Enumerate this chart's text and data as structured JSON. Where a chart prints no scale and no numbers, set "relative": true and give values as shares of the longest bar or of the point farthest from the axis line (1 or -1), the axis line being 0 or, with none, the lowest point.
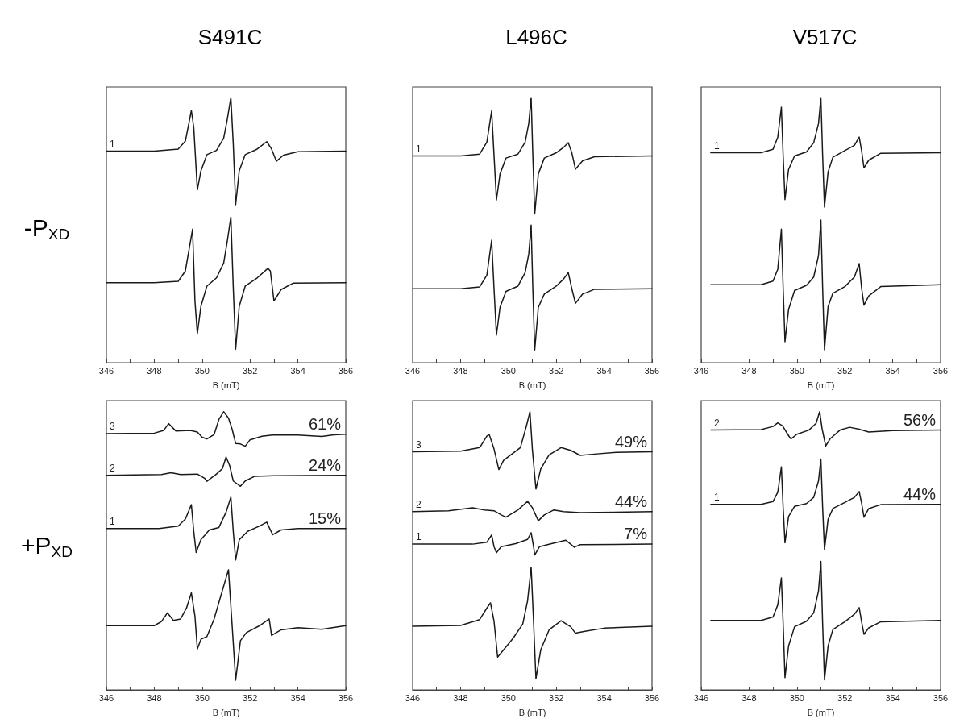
{
  "chart_data": [
    {
      "type": "line",
      "title": "S491C",
      "ylabel": "-P$_{XD}$",
      "xlabel": "B (mT)",
      "relative": true,
      "marker": "none",
      "xlim": [
        346,
        356
      ],
      "xticks": [
        346,
        {
          "value": 347,
          "label": null
        },
        348,
        {
          "value": 349,
          "label": null
        },
        350,
        {
          "value": 351,
          "label": null
        },
        352,
        {
          "value": 353,
          "label": null
        },
        354,
        {
          "value": 355,
          "label": null
        },
        356
      ],
      "series": [
        {
          "name": "1",
          "color": "#1a1a1a",
          "x": [
            346,
            348,
            349,
            349.3,
            349.55,
            349.65,
            349.8,
            349.95,
            350.2,
            350.6,
            350.9,
            351.05,
            351.2,
            351.3,
            351.4,
            351.55,
            351.8,
            352.3,
            352.7,
            352.9,
            353.1,
            353.4,
            354,
            356
          ],
          "values": [
            0.798,
            0.798,
            0.806,
            0.836,
            0.951,
            0.888,
            0.652,
            0.724,
            0.785,
            0.801,
            0.847,
            0.918,
            1.0,
            0.826,
            0.596,
            0.724,
            0.785,
            0.806,
            0.834,
            0.806,
            0.76,
            0.783,
            0.796,
            0.798
          ]
        },
        {
          "color": "#1a1a1a",
          "x": [
            346,
            348,
            349,
            349.3,
            349.6,
            349.7,
            349.8,
            349.95,
            350.2,
            350.6,
            350.9,
            351.05,
            351.2,
            351.3,
            351.4,
            351.55,
            351.8,
            352.3,
            352.75,
            352.85,
            353,
            353.3,
            353.8,
            356
          ],
          "values": [
            0.302,
            0.302,
            0.307,
            0.346,
            0.504,
            0.233,
            0.11,
            0.213,
            0.289,
            0.32,
            0.376,
            0.458,
            0.55,
            0.284,
            0.051,
            0.213,
            0.289,
            0.32,
            0.356,
            0.346,
            0.233,
            0.276,
            0.3,
            0.302
          ]
        }
      ]
    },
    {
      "type": "line",
      "title": "L496C",
      "xlabel": "B (mT)",
      "relative": true,
      "marker": "none",
      "xlim": [
        346,
        356
      ],
      "xticks": [
        346,
        {
          "value": 347,
          "label": null
        },
        348,
        {
          "value": 349,
          "label": null
        },
        350,
        {
          "value": 351,
          "label": null
        },
        352,
        {
          "value": 353,
          "label": null
        },
        354,
        {
          "value": 355,
          "label": null
        },
        356
      ],
      "series": [
        {
          "name": "1",
          "color": "#1a1a1a",
          "x": [
            346,
            348,
            348.8,
            349.1,
            349.3,
            349.4,
            349.5,
            349.65,
            349.9,
            350.4,
            350.7,
            350.85,
            350.95,
            351.02,
            351.1,
            351.25,
            351.5,
            352,
            352.3,
            352.5,
            352.65,
            352.8,
            353.1,
            353.6,
            356
          ],
          "values": [
            0.78,
            0.78,
            0.787,
            0.832,
            0.95,
            0.782,
            0.614,
            0.712,
            0.772,
            0.787,
            0.832,
            0.903,
            1.0,
            0.782,
            0.561,
            0.712,
            0.772,
            0.792,
            0.812,
            0.83,
            0.792,
            0.73,
            0.762,
            0.777,
            0.78
          ]
        },
        {
          "color": "#1a1a1a",
          "x": [
            346,
            348,
            348.8,
            349.1,
            349.3,
            349.4,
            349.5,
            349.65,
            349.9,
            350.4,
            350.7,
            350.85,
            350.95,
            351.02,
            351.1,
            351.25,
            351.5,
            352,
            352.3,
            352.5,
            352.65,
            352.8,
            353.1,
            353.6,
            356
          ],
          "values": [
            0.279,
            0.279,
            0.286,
            0.33,
            0.462,
            0.279,
            0.104,
            0.209,
            0.269,
            0.289,
            0.34,
            0.41,
            0.519,
            0.279,
            0.048,
            0.209,
            0.259,
            0.289,
            0.315,
            0.34,
            0.279,
            0.224,
            0.259,
            0.277,
            0.279
          ]
        }
      ]
    },
    {
      "type": "line",
      "title": "V517C",
      "xlabel": "B (mT)",
      "relative": true,
      "marker": "none",
      "xlim": [
        346,
        356
      ],
      "xticks": [
        346,
        {
          "value": 347,
          "label": null
        },
        348,
        {
          "value": 349,
          "label": null
        },
        350,
        {
          "value": 351,
          "label": null
        },
        352,
        {
          "value": 353,
          "label": null
        },
        354,
        {
          "value": 355,
          "label": null
        },
        356
      ],
      "series": [
        {
          "name": "1",
          "color": "#1a1a1a",
          "x": [
            346.4,
            348.5,
            349,
            349.2,
            349.35,
            349.42,
            349.5,
            349.65,
            349.9,
            350.4,
            350.7,
            350.9,
            351,
            351.07,
            351.15,
            351.3,
            351.5,
            352,
            352.4,
            352.6,
            352.7,
            352.8,
            353,
            353.5,
            356
          ],
          "values": [
            0.792,
            0.792,
            0.805,
            0.851,
            0.964,
            0.79,
            0.615,
            0.729,
            0.78,
            0.795,
            0.83,
            0.902,
            1.0,
            0.79,
            0.587,
            0.719,
            0.775,
            0.8,
            0.82,
            0.851,
            0.8,
            0.735,
            0.764,
            0.79,
            0.792
          ]
        },
        {
          "color": "#1a1a1a",
          "x": [
            346.4,
            348.5,
            349,
            349.2,
            349.35,
            349.42,
            349.5,
            349.65,
            349.9,
            350.4,
            350.7,
            350.9,
            351,
            351.07,
            351.15,
            351.3,
            351.5,
            352,
            352.4,
            352.6,
            352.7,
            352.8,
            353,
            353.5,
            356
          ],
          "values": [
            0.294,
            0.294,
            0.308,
            0.353,
            0.504,
            0.292,
            0.079,
            0.201,
            0.272,
            0.292,
            0.323,
            0.404,
            0.538,
            0.292,
            0.049,
            0.211,
            0.262,
            0.287,
            0.323,
            0.374,
            0.282,
            0.217,
            0.252,
            0.287,
            0.294
          ]
        }
      ]
    },
    {
      "type": "line",
      "ylabel": "+P$_{XD}$",
      "xlabel": "B (mT)",
      "relative": true,
      "marker": "none",
      "xlim": [
        346,
        356
      ],
      "xticks": [
        346,
        {
          "value": 347,
          "label": null
        },
        348,
        {
          "value": 349,
          "label": null
        },
        350,
        {
          "value": 351,
          "label": null
        },
        352,
        {
          "value": 353,
          "label": null
        },
        354,
        {
          "value": 355,
          "label": null
        },
        356
      ],
      "annotations": [
        "61%",
        "24%",
        "15%"
      ],
      "series": [
        {
          "name": "3",
          "color": "#1a1a1a",
          "x": [
            346,
            348,
            348.4,
            348.6,
            348.9,
            349.5,
            349.8,
            350,
            350.2,
            350.5,
            350.7,
            350.9,
            351.1,
            351.25,
            351.4,
            351.6,
            351.8,
            352,
            352.5,
            353,
            354,
            355,
            355.5,
            356
          ],
          "values": [
            0.921,
            0.923,
            0.933,
            0.957,
            0.931,
            0.933,
            0.927,
            0.908,
            0.902,
            0.918,
            0.972,
            1.0,
            0.977,
            0.938,
            0.886,
            0.884,
            0.876,
            0.899,
            0.912,
            0.917,
            0.916,
            0.911,
            0.917,
            0.919
          ]
        },
        {
          "name": "2",
          "color": "#1a1a1a",
          "x": [
            346,
            348.3,
            348.7,
            349.1,
            349.8,
            350.1,
            350.2,
            350.6,
            350.85,
            351,
            351.15,
            351.3,
            351.6,
            351.8,
            352.2,
            353,
            356
          ],
          "values": [
            0.771,
            0.774,
            0.781,
            0.774,
            0.776,
            0.761,
            0.75,
            0.776,
            0.796,
            0.837,
            0.806,
            0.751,
            0.732,
            0.751,
            0.768,
            0.77,
            0.771
          ]
        },
        {
          "name": "1",
          "color": "#1a1a1a",
          "x": [
            346,
            348.2,
            349,
            349.3,
            349.55,
            349.65,
            349.75,
            349.95,
            350.3,
            350.7,
            351,
            351.2,
            351.3,
            351.4,
            351.55,
            351.9,
            352.4,
            352.7,
            352.8,
            352.95,
            353.3,
            354,
            356
          ],
          "values": [
            0.58,
            0.58,
            0.589,
            0.614,
            0.666,
            0.57,
            0.494,
            0.54,
            0.575,
            0.584,
            0.639,
            0.693,
            0.57,
            0.467,
            0.54,
            0.57,
            0.589,
            0.603,
            0.584,
            0.558,
            0.575,
            0.58,
            0.58
          ]
        },
        {
          "color": "#1a1a1a",
          "x": [
            346,
            348,
            348.3,
            348.55,
            348.8,
            349.1,
            349.35,
            349.55,
            349.7,
            349.8,
            349.95,
            350.2,
            350.5,
            350.8,
            351.1,
            351.25,
            351.4,
            351.6,
            351.85,
            352.4,
            352.8,
            352.9,
            353.3,
            354,
            355,
            356
          ],
          "values": [
            0.231,
            0.231,
            0.246,
            0.277,
            0.25,
            0.255,
            0.295,
            0.349,
            0.265,
            0.147,
            0.182,
            0.192,
            0.255,
            0.344,
            0.432,
            0.236,
            0.035,
            0.177,
            0.206,
            0.231,
            0.255,
            0.196,
            0.216,
            0.224,
            0.218,
            0.231
          ]
        }
      ]
    },
    {
      "type": "line",
      "xlabel": "B (mT)",
      "relative": true,
      "marker": "none",
      "xlim": [
        346,
        356
      ],
      "xticks": [
        346,
        {
          "value": 347,
          "label": null
        },
        348,
        {
          "value": 349,
          "label": null
        },
        350,
        {
          "value": 351,
          "label": null
        },
        352,
        {
          "value": 353,
          "label": null
        },
        354,
        {
          "value": 355,
          "label": null
        },
        356
      ],
      "annotations": [
        "49%",
        "44%",
        "7%"
      ],
      "series": [
        {
          "name": "3",
          "color": "#1a1a1a",
          "x": [
            346,
            348,
            348.8,
            349.1,
            349.2,
            349.4,
            349.6,
            349.8,
            350.1,
            350.5,
            350.75,
            350.9,
            351,
            351.15,
            351.35,
            351.7,
            352.2,
            352.6,
            353,
            353.5,
            354.5,
            356
          ],
          "values": [
            0.856,
            0.858,
            0.871,
            0.912,
            0.918,
            0.866,
            0.792,
            0.825,
            0.845,
            0.871,
            0.948,
            1.0,
            0.866,
            0.722,
            0.794,
            0.845,
            0.871,
            0.861,
            0.843,
            0.847,
            0.854,
            0.856
          ]
        },
        {
          "name": "2",
          "color": "#1a1a1a",
          "x": [
            346,
            347.5,
            348.5,
            349,
            349.4,
            349.7,
            349.9,
            350.4,
            350.8,
            351,
            351.25,
            351.5,
            351.9,
            352.3,
            353,
            356
          ],
          "values": [
            0.641,
            0.644,
            0.655,
            0.647,
            0.644,
            0.629,
            0.621,
            0.647,
            0.678,
            0.655,
            0.608,
            0.629,
            0.647,
            0.641,
            0.637,
            0.641
          ]
        },
        {
          "name": "1",
          "color": "#1a1a1a",
          "x": [
            346,
            348.5,
            349.1,
            349.3,
            349.4,
            349.5,
            349.7,
            350.3,
            350.8,
            350.95,
            351.05,
            351.1,
            351.3,
            351.8,
            352.4,
            352.6,
            352.75,
            353,
            356
          ],
          "values": [
            0.524,
            0.524,
            0.531,
            0.557,
            0.515,
            0.493,
            0.515,
            0.526,
            0.541,
            0.565,
            0.515,
            0.485,
            0.515,
            0.526,
            0.538,
            0.524,
            0.513,
            0.522,
            0.524
          ]
        },
        {
          "color": "#1a1a1a",
          "x": [
            346,
            348,
            348.8,
            349.1,
            349.25,
            349.4,
            349.55,
            349.8,
            350.2,
            350.6,
            350.8,
            350.95,
            351.05,
            351.15,
            351.35,
            351.7,
            352.2,
            352.6,
            352.8,
            353.2,
            354,
            356
          ],
          "values": [
            0.229,
            0.232,
            0.253,
            0.294,
            0.313,
            0.247,
            0.118,
            0.144,
            0.186,
            0.237,
            0.32,
            0.441,
            0.247,
            0.04,
            0.144,
            0.216,
            0.249,
            0.227,
            0.204,
            0.211,
            0.222,
            0.229
          ]
        }
      ]
    },
    {
      "type": "line",
      "xlabel": "B (mT)",
      "relative": true,
      "marker": "none",
      "xlim": [
        346,
        356
      ],
      "xticks": [
        346,
        {
          "value": 347,
          "label": null
        },
        348,
        {
          "value": 349,
          "label": null
        },
        350,
        {
          "value": 351,
          "label": null
        },
        352,
        {
          "value": 353,
          "label": null
        },
        354,
        {
          "value": 355,
          "label": null
        },
        356
      ],
      "annotations": [
        "56%",
        "44%"
      ],
      "series": [
        {
          "name": "2",
          "color": "#1a1a1a",
          "x": [
            346.4,
            348.5,
            349,
            349.2,
            349.4,
            349.65,
            349.75,
            350,
            350.5,
            350.8,
            350.95,
            351.05,
            351.2,
            351.4,
            351.8,
            352.2,
            352.6,
            353,
            354,
            356
          ],
          "values": [
            0.934,
            0.936,
            0.947,
            0.96,
            0.949,
            0.914,
            0.902,
            0.919,
            0.934,
            0.958,
            1.0,
            0.939,
            0.877,
            0.904,
            0.934,
            0.944,
            0.937,
            0.927,
            0.932,
            0.934
          ]
        },
        {
          "name": "1",
          "color": "#1a1a1a",
          "x": [
            346.4,
            348.5,
            349,
            349.2,
            349.35,
            349.42,
            349.5,
            349.65,
            349.9,
            350.4,
            350.7,
            350.9,
            351,
            351.07,
            351.15,
            351.3,
            351.5,
            352,
            352.4,
            352.6,
            352.7,
            352.8,
            353,
            353.5,
            356
          ],
          "values": [
            0.667,
            0.667,
            0.677,
            0.711,
            0.802,
            0.662,
            0.529,
            0.623,
            0.66,
            0.67,
            0.692,
            0.751,
            0.83,
            0.662,
            0.504,
            0.613,
            0.652,
            0.674,
            0.692,
            0.713,
            0.672,
            0.621,
            0.652,
            0.666,
            0.667
          ]
        },
        {
          "color": "#1a1a1a",
          "x": [
            346.4,
            348.5,
            349,
            349.2,
            349.35,
            349.42,
            349.5,
            349.65,
            349.9,
            350.4,
            350.7,
            350.9,
            351,
            351.07,
            351.15,
            351.3,
            351.5,
            352,
            352.4,
            352.6,
            352.7,
            352.8,
            353,
            353.5,
            356
          ],
          "values": [
            0.25,
            0.25,
            0.262,
            0.306,
            0.403,
            0.247,
            0.044,
            0.158,
            0.227,
            0.247,
            0.277,
            0.356,
            0.462,
            0.247,
            0.036,
            0.158,
            0.217,
            0.245,
            0.272,
            0.296,
            0.245,
            0.2,
            0.223,
            0.245,
            0.25
          ]
        }
      ]
    }
  ]
}
